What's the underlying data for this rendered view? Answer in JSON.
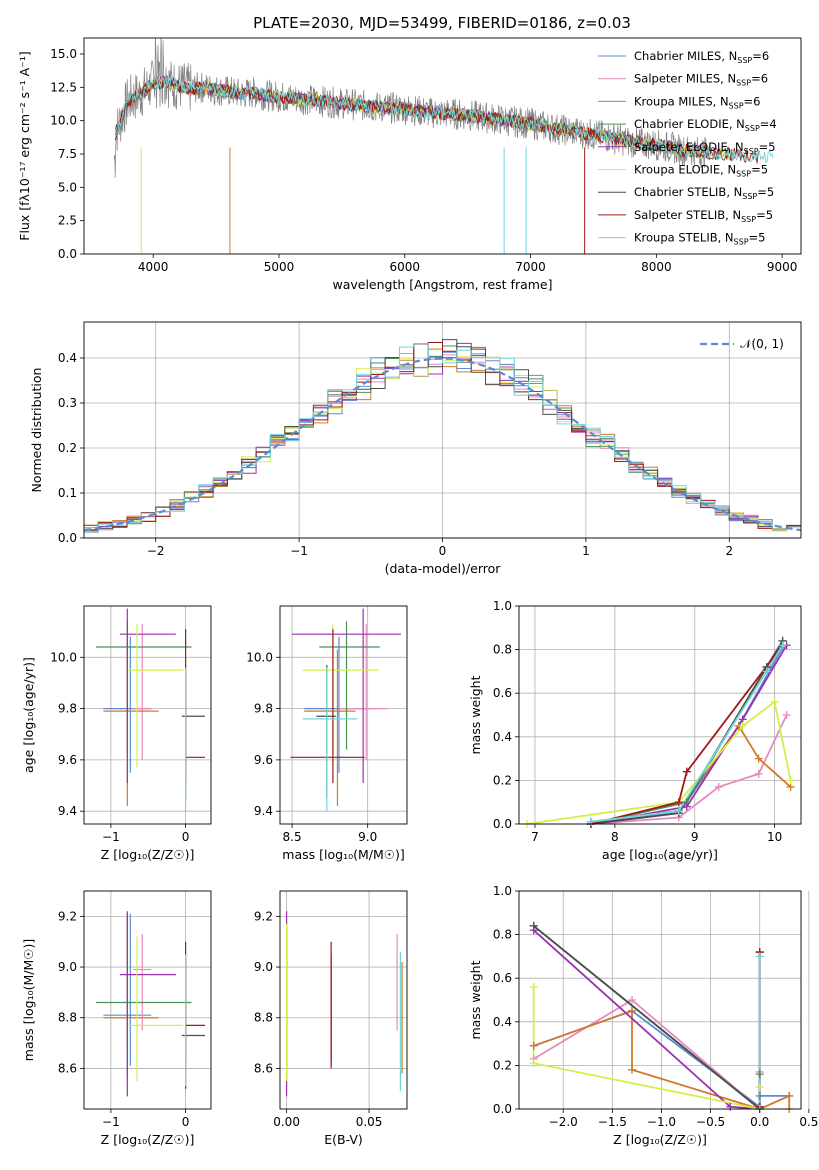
{
  "title": "PLATE=2030, MJD=53499, FIBERID=0186, z=0.03",
  "colors": [
    "#5b8bd6",
    "#e38bc0",
    "#d07a2a",
    "#4f8f5a",
    "#9b2fb0",
    "#d4ee4a",
    "#4d4d4d",
    "#a01818",
    "#6fd6dc"
  ],
  "chart_data": [
    {
      "id": "spectrum",
      "type": "line",
      "xlabel": "wavelength [Angstrom, rest frame]",
      "ylabel": "Flux [fλ10⁻¹⁷ erg cm⁻² s⁻¹ A⁻¹]",
      "xlim": [
        3450,
        9150
      ],
      "ylim": [
        0,
        16.2
      ],
      "xticks": [
        "4000",
        "5000",
        "6000",
        "7000",
        "8000",
        "9000"
      ],
      "yticks": [
        "0.0",
        "2.5",
        "5.0",
        "7.5",
        "10.0",
        "12.5",
        "15.0"
      ],
      "legend_position": "top-right",
      "data_spectrum": {
        "x": [
          3700,
          3800,
          3900,
          4000,
          4100,
          4200,
          4300,
          4400,
          4500,
          4600,
          4700,
          4800,
          4900,
          5000,
          5200,
          5400,
          5600,
          5800,
          6000,
          6200,
          6400,
          6600,
          6800,
          7000,
          7200,
          7400,
          7600,
          7800,
          8000,
          8200,
          8400,
          8600,
          8800,
          9000
        ],
        "y": [
          9.0,
          11.5,
          12.0,
          12.8,
          12.9,
          12.6,
          12.4,
          12.5,
          12.3,
          12.2,
          12.0,
          12.1,
          11.9,
          11.8,
          11.6,
          11.4,
          11.2,
          11.0,
          10.9,
          10.6,
          10.5,
          10.3,
          10.0,
          9.8,
          9.4,
          9.1,
          8.8,
          8.4,
          8.2,
          7.8,
          7.6,
          7.5,
          7.3,
          7.2
        ]
      },
      "series": [
        {
          "name": "Chabrier MILES, N$_{SSP}$=6",
          "label_main": "Chabrier MILES, N",
          "label_sub": "SSP",
          "label_tail": "=6"
        },
        {
          "name": "Salpeter MILES, N$_{SSP}$=6",
          "label_main": "Salpeter MILES, N",
          "label_sub": "SSP",
          "label_tail": "=6"
        },
        {
          "name": "Kroupa MILES, N$_{SSP}$=6",
          "label_main": "Kroupa MILES, N",
          "label_sub": "SSP",
          "label_tail": "=6"
        },
        {
          "name": "Chabrier ELODIE, N$_{SSP}$=4",
          "label_main": "Chabrier ELODIE, N",
          "label_sub": "SSP",
          "label_tail": "=4"
        },
        {
          "name": "Salpeter ELODIE, N$_{SSP}$=5",
          "label_main": "Salpeter ELODIE, N",
          "label_sub": "SSP",
          "label_tail": "=5"
        },
        {
          "name": "Kroupa ELODIE, N$_{SSP}$=5",
          "label_main": "Kroupa ELODIE, N",
          "label_sub": "SSP",
          "label_tail": "=5"
        },
        {
          "name": "Chabrier STELIB, N$_{SSP}$=5",
          "label_main": "Chabrier STELIB, N",
          "label_sub": "SSP",
          "label_tail": "=5"
        },
        {
          "name": "Salpeter STELIB, N$_{SSP}$=5",
          "label_main": "Salpeter STELIB, N",
          "label_sub": "SSP",
          "label_tail": "=5"
        },
        {
          "name": "Kroupa STELIB, N$_{SSP}$=5",
          "label_main": "Kroupa STELIB, N",
          "label_sub": "SSP",
          "label_tail": "=5"
        }
      ]
    },
    {
      "id": "residuals",
      "type": "histogram",
      "xlabel": "(data-model)/error",
      "ylabel": "Normed distribution",
      "xlim": [
        -2.5,
        2.5
      ],
      "ylim": [
        0,
        0.48
      ],
      "xticks": [
        "−2",
        "−1",
        "0",
        "1",
        "2"
      ],
      "yticks": [
        "0.0",
        "0.1",
        "0.2",
        "0.3",
        "0.4"
      ],
      "grid": true,
      "legend": "𝒩(0, 1)",
      "legend_position": "top-right",
      "bin_width": 0.1
    },
    {
      "id": "age-vs-Z",
      "type": "errorbar",
      "xlabel": "Z [log₁₀(Z/Z☉)]",
      "ylabel": "age  [log₁₀(age/yr)]",
      "xlim": [
        -1.36,
        0.34
      ],
      "ylim": [
        9.35,
        10.2
      ],
      "xticks": [
        "−1",
        "0"
      ],
      "yticks": [
        "9.4",
        "9.6",
        "9.8",
        "10.0"
      ],
      "grid": true,
      "points": [
        {
          "x": -0.74,
          "xerr": [
            0.36,
            0.28
          ],
          "y": 9.8,
          "yerr": [
            0.25,
            0.28
          ]
        },
        {
          "x": -0.58,
          "xerr": [
            0.12,
            0.12
          ],
          "y": 9.8,
          "yerr": [
            0.2,
            0.33
          ]
        },
        {
          "x": -0.78,
          "xerr": [
            0.32,
            0.42
          ],
          "y": 9.79,
          "yerr": [
            0.37,
            0.24
          ]
        },
        {
          "x": -0.78,
          "xerr": [
            0.42,
            0.86
          ],
          "y": 10.04,
          "yerr": [
            0.4,
            0.1
          ]
        },
        {
          "x": -0.78,
          "xerr": [
            0.1,
            0.65
          ],
          "y": 10.09,
          "yerr": [
            0.58,
            0.1
          ]
        },
        {
          "x": -0.65,
          "xerr": [
            0.12,
            0.62
          ],
          "y": 9.95,
          "yerr": [
            0.38,
            0.18
          ]
        },
        {
          "x": 0.0,
          "xerr": [
            0.05,
            0.26
          ],
          "y": 9.77,
          "yerr": [
            0.32,
            0.2
          ]
        },
        {
          "x": 0.0,
          "xerr": [
            0.0,
            0.26
          ],
          "y": 9.61,
          "yerr": [
            0.1,
            0.5
          ]
        },
        {
          "x": 0.0,
          "xerr": [
            0.0,
            0.0
          ],
          "y": 9.76,
          "yerr": [
            0.36,
            0.2
          ]
        }
      ]
    },
    {
      "id": "age-vs-mass",
      "type": "errorbar",
      "xlabel": "mass [log₁₀(M/M☉)]",
      "ylabel": "",
      "xlim": [
        8.42,
        9.26
      ],
      "ylim": [
        9.35,
        10.2
      ],
      "xticks": [
        "8.5",
        "9.0"
      ],
      "yticks": [
        "9.4",
        "9.6",
        "9.8",
        "10.0"
      ],
      "grid": true,
      "points": [
        {
          "x": 8.81,
          "xerr": [
            0.23,
            0.25
          ],
          "y": 9.8,
          "yerr": [
            0.25,
            0.28
          ]
        },
        {
          "x": 8.99,
          "xerr": [
            0.18,
            0.14
          ],
          "y": 9.8,
          "yerr": [
            0.2,
            0.33
          ]
        },
        {
          "x": 8.8,
          "xerr": [
            0.22,
            0.12
          ],
          "y": 9.79,
          "yerr": [
            0.37,
            0.24
          ]
        },
        {
          "x": 8.86,
          "xerr": [
            0.18,
            0.22
          ],
          "y": 10.04,
          "yerr": [
            0.4,
            0.1
          ]
        },
        {
          "x": 8.97,
          "xerr": [
            0.47,
            0.25
          ],
          "y": 10.09,
          "yerr": [
            0.58,
            0.1
          ]
        },
        {
          "x": 8.77,
          "xerr": [
            0.2,
            0.3
          ],
          "y": 9.95,
          "yerr": [
            0.38,
            0.18
          ]
        },
        {
          "x": 8.73,
          "xerr": [
            0.07,
            0.06
          ],
          "y": 9.77,
          "yerr": [
            0.32,
            0.2
          ]
        },
        {
          "x": 8.77,
          "xerr": [
            0.28,
            0.21
          ],
          "y": 9.61,
          "yerr": [
            0.1,
            0.5
          ]
        },
        {
          "x": 8.73,
          "xerr": [
            0.16,
            0.2
          ],
          "y": 9.76,
          "yerr": [
            0.36,
            0.2
          ]
        }
      ]
    },
    {
      "id": "weight-vs-age",
      "type": "line",
      "xlabel": "age  [log₁₀(age/yr)]",
      "ylabel": "mass weight",
      "xlim": [
        6.8,
        10.33
      ],
      "ylim": [
        0,
        1.0
      ],
      "xticks": [
        "7",
        "8",
        "9",
        "10"
      ],
      "yticks": [
        "0.0",
        "0.2",
        "0.4",
        "0.6",
        "0.8",
        "1.0"
      ],
      "grid": true,
      "series": [
        {
          "x": [
            7.7,
            8.8,
            9.55,
            10.1
          ],
          "y": [
            0.01,
            0.05,
            0.45,
            0.81
          ]
        },
        {
          "x": [
            7.7,
            8.8,
            9.3,
            9.8,
            10.15
          ],
          "y": [
            0.0,
            0.03,
            0.17,
            0.23,
            0.5
          ]
        },
        {
          "x": [
            7.7,
            8.8,
            9.55,
            9.8,
            10.2
          ],
          "y": [
            0.01,
            0.06,
            0.45,
            0.3,
            0.17
          ]
        },
        {
          "x": [
            7.7,
            8.9,
            9.9,
            10.1
          ],
          "y": [
            0.0,
            0.1,
            0.72,
            0.84
          ]
        },
        {
          "x": [
            7.7,
            8.9,
            9.6,
            10.15
          ],
          "y": [
            0.0,
            0.08,
            0.48,
            0.82
          ]
        },
        {
          "x": [
            6.9,
            8.8,
            9.6,
            10.0,
            10.2
          ],
          "y": [
            0.0,
            0.1,
            0.45,
            0.56,
            0.2
          ]
        },
        {
          "x": [
            7.7,
            8.8,
            9.9,
            10.1
          ],
          "y": [
            0.0,
            0.05,
            0.72,
            0.84
          ]
        },
        {
          "x": [
            7.7,
            8.8,
            8.9,
            10.1
          ],
          "y": [
            0.0,
            0.1,
            0.24,
            0.82
          ]
        },
        {
          "x": [
            7.7,
            8.8,
            9.9,
            10.1
          ],
          "y": [
            0.01,
            0.06,
            0.7,
            0.82
          ]
        }
      ]
    },
    {
      "id": "mass-vs-Z",
      "type": "errorbar",
      "xlabel": "Z [log₁₀(Z/Z☉)]",
      "ylabel": "mass [log₁₀(M/M☉)]",
      "xlim": [
        -1.36,
        0.34
      ],
      "ylim": [
        8.44,
        9.3
      ],
      "xticks": [
        "−1",
        "0"
      ],
      "yticks": [
        "8.6",
        "8.8",
        "9.0",
        "9.2"
      ],
      "grid": true,
      "points": [
        {
          "x": -0.74,
          "xerr": [
            0.36,
            0.28
          ],
          "y": 8.81,
          "yerr": [
            0.2,
            0.4
          ]
        },
        {
          "x": -0.58,
          "xerr": [
            0.12,
            0.12
          ],
          "y": 8.99,
          "yerr": [
            0.24,
            0.14
          ]
        },
        {
          "x": -0.78,
          "xerr": [
            0.32,
            0.42
          ],
          "y": 8.8,
          "yerr": [
            0.12,
            0.4
          ]
        },
        {
          "x": -0.78,
          "xerr": [
            0.42,
            0.86
          ],
          "y": 8.86,
          "yerr": [
            0.3,
            0.35
          ]
        },
        {
          "x": -0.78,
          "xerr": [
            0.1,
            0.65
          ],
          "y": 8.97,
          "yerr": [
            0.48,
            0.25
          ]
        },
        {
          "x": -0.65,
          "xerr": [
            0.12,
            0.62
          ],
          "y": 8.77,
          "yerr": [
            0.22,
            0.35
          ]
        },
        {
          "x": 0.0,
          "xerr": [
            0.05,
            0.26
          ],
          "y": 8.73,
          "yerr": [
            0.1,
            0.3
          ]
        },
        {
          "x": 0.0,
          "xerr": [
            0.0,
            0.26
          ],
          "y": 8.77,
          "yerr": [
            0.25,
            0.33
          ]
        },
        {
          "x": 0.0,
          "xerr": [
            0.0,
            0.0
          ],
          "y": 8.73,
          "yerr": [
            0.2,
            0.32
          ]
        }
      ]
    },
    {
      "id": "mass-vs-ebv",
      "type": "errorbar",
      "xlabel": "E(B-V)",
      "ylabel": "",
      "xlim": [
        -0.004,
        0.073
      ],
      "ylim": [
        8.44,
        9.3
      ],
      "xticks": [
        "0.00",
        "0.05"
      ],
      "yticks": [
        "8.6",
        "8.8",
        "9.0",
        "9.2"
      ],
      "grid": true,
      "points": [
        {
          "x": 0.027,
          "y": 8.81,
          "yerr": [
            0.2,
            0.2
          ]
        },
        {
          "x": 0.067,
          "y": 8.99,
          "yerr": [
            0.24,
            0.14
          ]
        },
        {
          "x": 0.07,
          "y": 8.8,
          "yerr": [
            0.22,
            0.22
          ]
        },
        {
          "x": 0.0,
          "y": 8.86,
          "yerr": [
            0.26,
            0.3
          ]
        },
        {
          "x": 0.0,
          "y": 8.97,
          "yerr": [
            0.48,
            0.25
          ]
        },
        {
          "x": 0.0,
          "y": 8.77,
          "yerr": [
            0.22,
            0.4
          ]
        },
        {
          "x": 0.027,
          "y": 8.73,
          "yerr": [
            0.1,
            0.32
          ]
        },
        {
          "x": 0.027,
          "y": 8.85,
          "yerr": [
            0.25,
            0.25
          ]
        },
        {
          "x": 0.069,
          "y": 8.76,
          "yerr": [
            0.25,
            0.3
          ]
        }
      ]
    },
    {
      "id": "weight-vs-Z",
      "type": "line",
      "xlabel": "Z [log₁₀(Z/Z☉)]",
      "ylabel": "mass weight",
      "xlim": [
        -2.45,
        0.42
      ],
      "ylim": [
        0,
        1.0
      ],
      "xticks": [
        "−2.0",
        "−1.5",
        "−1.0",
        "−0.5",
        "0.0",
        "0.5"
      ],
      "yticks": [
        "0.0",
        "0.2",
        "0.4",
        "0.6",
        "0.8",
        "1.0"
      ],
      "grid": true,
      "series": [
        {
          "x": [
            -2.3,
            -1.3,
            0.0,
            0.0,
            0.3
          ],
          "y": [
            0.29,
            0.45,
            0.01,
            0.06,
            0.06
          ]
        },
        {
          "x": [
            -2.3,
            -1.3,
            0.0,
            0.0
          ],
          "y": [
            0.23,
            0.5,
            0.0,
            0.17
          ]
        },
        {
          "x": [
            -2.3,
            -1.3,
            -1.3,
            0.0,
            0.3,
            0.3
          ],
          "y": [
            0.29,
            0.45,
            0.18,
            0.0,
            0.06,
            0.0
          ]
        },
        {
          "x": [
            -2.3,
            0.0,
            0.0
          ],
          "y": [
            0.84,
            0.0,
            0.16
          ]
        },
        {
          "x": [
            -2.3,
            -0.3,
            0.0
          ],
          "y": [
            0.82,
            0.01,
            0.0
          ]
        },
        {
          "x": [
            -2.3,
            -2.3,
            0.0,
            0.0
          ],
          "y": [
            0.56,
            0.21,
            0.0,
            0.1
          ]
        },
        {
          "x": [
            -2.3,
            0.0,
            0.0
          ],
          "y": [
            0.84,
            0.0,
            0.72
          ]
        },
        {
          "x": [
            0.0,
            0.0
          ],
          "y": [
            0.01,
            0.72
          ]
        },
        {
          "x": [
            0.0,
            0.0
          ],
          "y": [
            0.0,
            0.7
          ]
        }
      ]
    }
  ]
}
